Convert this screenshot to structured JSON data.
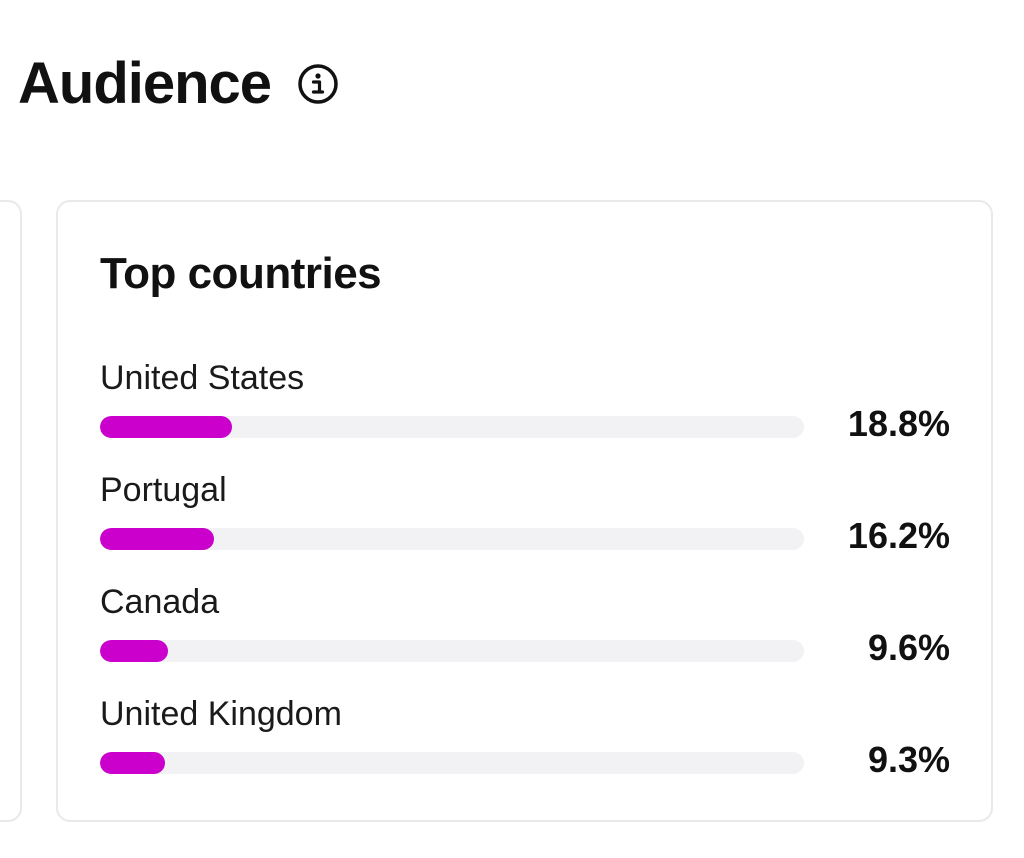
{
  "header": {
    "title": "Audience",
    "info_icon": "info-circle-icon"
  },
  "top_countries": {
    "title": "Top countries",
    "bar_color": "#cc00cc",
    "track_color": "#f2f2f5",
    "items": [
      {
        "label": "United States",
        "value": "18.8%",
        "fill_fraction": 0.188
      },
      {
        "label": "Portugal",
        "value": "16.2%",
        "fill_fraction": 0.162
      },
      {
        "label": "Canada",
        "value": "9.6%",
        "fill_fraction": 0.096
      },
      {
        "label": "United Kingdom",
        "value": "9.3%",
        "fill_fraction": 0.093
      }
    ]
  }
}
